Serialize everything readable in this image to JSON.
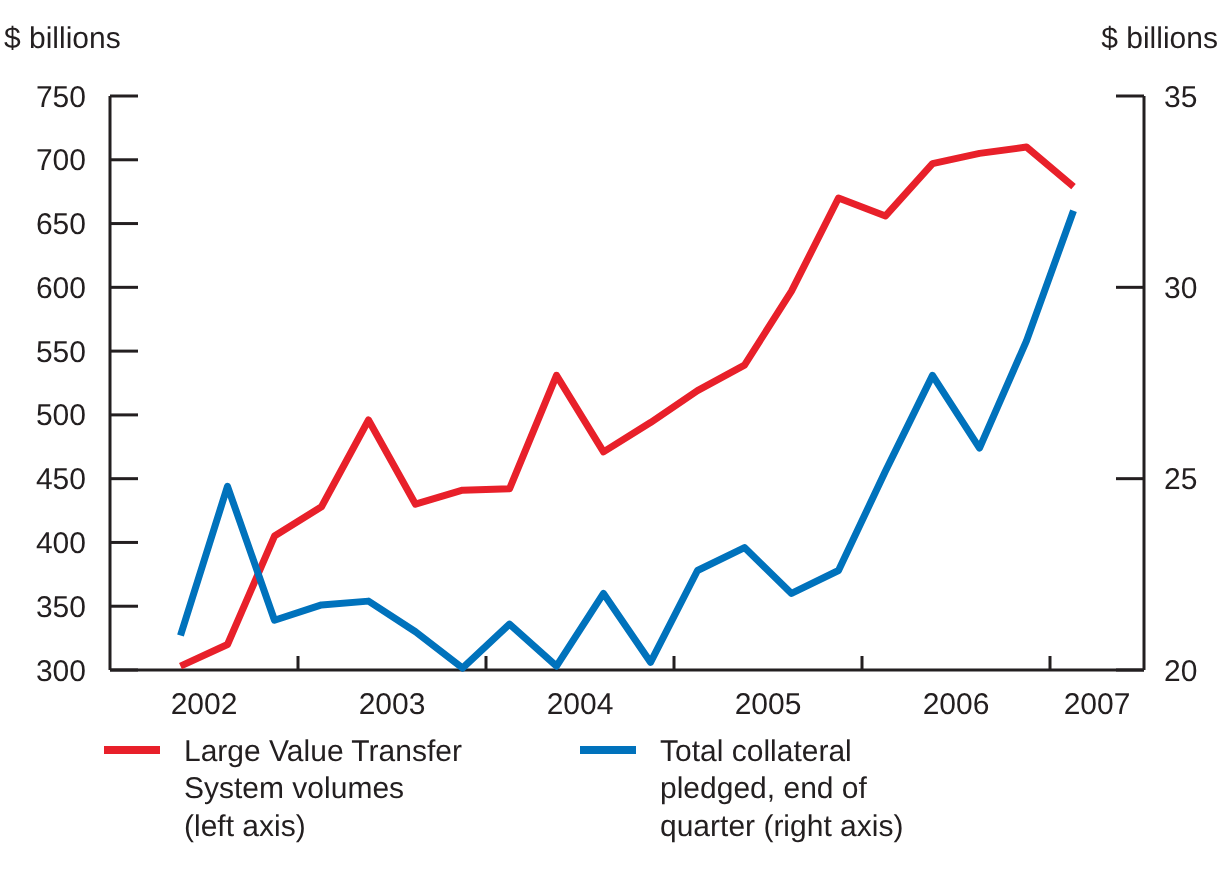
{
  "chart_data": {
    "type": "line",
    "ylabel": "$ billions",
    "y2label": "$ billions",
    "x": [
      2002.375,
      2002.625,
      2002.875,
      2003.125,
      2003.375,
      2003.625,
      2003.875,
      2004.125,
      2004.375,
      2004.625,
      2004.875,
      2005.125,
      2005.375,
      2005.625,
      2005.875,
      2006.125,
      2006.375,
      2006.625,
      2006.875,
      2007.125
    ],
    "xlim": [
      2002,
      2007.5
    ],
    "xticks": [
      {
        "value": 2002.5,
        "label": "2002"
      },
      {
        "value": 2003,
        "label": null
      },
      {
        "value": 2003.5,
        "label": "2003"
      },
      {
        "value": 2004,
        "label": null
      },
      {
        "value": 2004.5,
        "label": "2004"
      },
      {
        "value": 2005,
        "label": null
      },
      {
        "value": 2005.5,
        "label": "2005"
      },
      {
        "value": 2006,
        "label": null
      },
      {
        "value": 2006.5,
        "label": "2006"
      },
      {
        "value": 2007,
        "label": null
      },
      {
        "value": 2007.25,
        "label": "2007"
      }
    ],
    "ylim": [
      300,
      750
    ],
    "yticks": [
      300,
      350,
      400,
      450,
      500,
      550,
      600,
      650,
      700,
      750
    ],
    "y2lim": [
      20,
      35
    ],
    "y2ticks": [
      20,
      25,
      30,
      35
    ],
    "legend": "bottom",
    "grid": false,
    "line_style": "solid",
    "marker": "none",
    "series": [
      {
        "name": "Large Value Transfer\nSystem volumes\n(left axis)",
        "color": "#e8202a",
        "values": [
          303,
          320,
          405,
          428,
          496,
          430,
          441,
          442,
          531,
          471,
          494,
          519,
          539,
          597,
          670,
          656,
          697,
          705,
          710,
          679
        ]
      },
      {
        "name": "Total collateral\npledged, end of\nquarter (right axis)",
        "color": "#0072bc",
        "axis": "y2",
        "values": [
          20.9,
          24.8,
          21.3,
          21.7,
          21.8,
          21.0,
          20.05,
          21.2,
          20.1,
          22.0,
          20.2,
          22.6,
          23.2,
          22.0,
          22.6,
          25.2,
          27.7,
          25.8,
          28.6,
          32.0
        ]
      }
    ]
  }
}
